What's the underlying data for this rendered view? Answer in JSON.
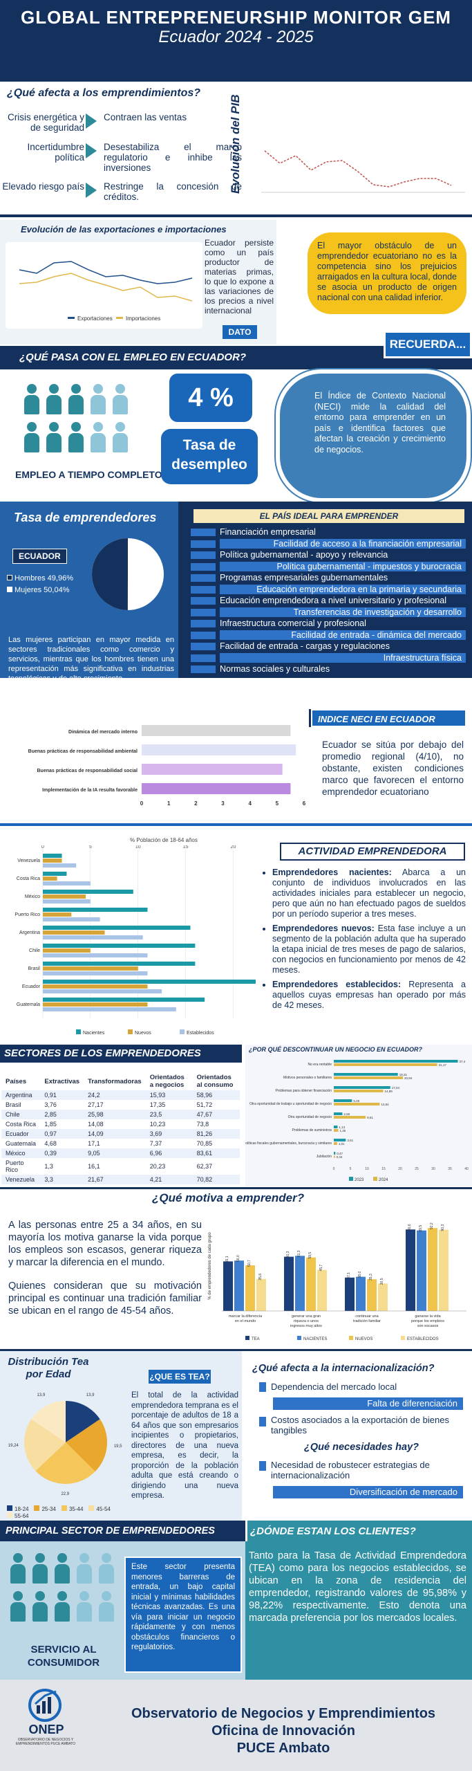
{
  "header": {
    "title": "GLOBAL ENTREPRENEURSHIP MONITOR GEM",
    "subtitle": "Ecuador 2024 - 2025"
  },
  "affects": {
    "title": "¿Qué afecta a los emprendimientos?",
    "rows": [
      {
        "left": "Crisis energética y de seguridad",
        "right": "Contraen las ventas"
      },
      {
        "left": "Incertidumbre política",
        "right": "Desestabiliza el marco regulatorio e inhibe las inversiones"
      },
      {
        "left": "Elevado riesgo país",
        "right": "Restringe la concesión de créditos."
      }
    ]
  },
  "pib": {
    "axis_label": "Evolución del PIB"
  },
  "exports": {
    "title": "Evolución de las exportaciones e importaciones",
    "text": "Ecuador persiste como un país productor de materias primas, lo que lo expone a las variaciones de los precios a nivel internacional",
    "button": "DATO",
    "legend": [
      "Exportaciones",
      "Importaciones"
    ]
  },
  "obstacle": {
    "text": "El mayor obstáculo de un emprendedor ecuatoriano no es la competencia sino los prejuicios arraigados en la cultura local, donde se asocia un producto de origen nacional con una calidad inferior.",
    "remember": "RECUERDA..."
  },
  "employment": {
    "title": "¿QUÉ PASA CON EL EMPLEO EN ECUADOR?",
    "caption": "EMPLEO A TIEMPO COMPLETO",
    "rate": "4 %",
    "rate_label": "Tasa de desempleo",
    "neci_text": "El Índice de Contexto Nacional (NECI) mide la calidad del entorno para emprender en un país e identifica factores que afectan la creación y crecimiento de negocios."
  },
  "rate_entre": {
    "title": "Tasa de emprendedores",
    "country": "ECUADOR",
    "men": "Hombres 49,96%",
    "women": "Mujeres 50,04%",
    "women_pct": 50.04,
    "text": "Las mujeres participan en mayor medida en sectores tradicionales como comercio y servicios, mientras que los hombres tienen una representación más significativa en industrias tecnológicas y de alto crecimiento."
  },
  "ideal": {
    "title": "EL PAÍS IDEAL PARA EMPRENDER",
    "items": [
      {
        "label": "Financiación empresarial",
        "side": "left"
      },
      {
        "label": "Facilidad de acceso a la financiación empresarial",
        "side": "right"
      },
      {
        "label": "Política gubernamental - apoyo y relevancia",
        "side": "left"
      },
      {
        "label": "Política gubernamental - impuestos y burocracia",
        "side": "right"
      },
      {
        "label": "Programas empresariales gubernamentales",
        "side": "left"
      },
      {
        "label": "Educación emprendedora en la primaria y secundaria",
        "side": "right"
      },
      {
        "label": "Educación emprendedora a nivel universitario y profesional",
        "side": "left"
      },
      {
        "label": "Transferencias de investigación y desarrollo",
        "side": "right"
      },
      {
        "label": "Infraestructura comercial y profesional",
        "side": "left"
      },
      {
        "label": "Facilidad de entrada - dinámica del mercado",
        "side": "right"
      },
      {
        "label": "Facilidad de entrada - cargas y regulaciones",
        "side": "left"
      },
      {
        "label": "Infraestructura física",
        "side": "right"
      },
      {
        "label": "Normas sociales y culturales",
        "side": "left"
      }
    ]
  },
  "neci": {
    "title": "INDICE NECI EN ECUADOR",
    "text": "Ecuador se sitúa por debajo del promedio regional (4/10), no obstante, existen condiciones marco que favorecen el entorno emprendedor ecuatoriano"
  },
  "neci_chart": {
    "type": "bar",
    "categories": [
      "Dinámica del mercado interno",
      "Buenas prácticas de responsabilidad ambiental",
      "Buenas prácticas de responsabilidad social",
      "Implementación de la IA resulta favorable"
    ],
    "values": [
      5.5,
      5.7,
      5.2,
      5.5
    ],
    "ticks": [
      "0",
      "1",
      "2",
      "3",
      "4",
      "5",
      "6"
    ],
    "colors": [
      "#d9d9d9",
      "#dfe3f6",
      "#d7b6ee",
      "#b98ae0"
    ]
  },
  "activity": {
    "title": "ACTIVIDAD EMPRENDEDORA",
    "chart_title": "% Población de 18-64 años",
    "ticks": [
      "0",
      "5",
      "10",
      "15",
      "20"
    ],
    "items": [
      {
        "head": "Emprendedores nacientes:",
        "body": "Abarca a un conjunto de individuos involucrados en las actividades iniciales para establecer un negocio, pero que aún no han efectuado pagos de sueldos por un período superior a tres meses."
      },
      {
        "head": "Emprendedores nuevos:",
        "body": "Esta fase incluye a un segmento de la población adulta que ha superado la etapa inicial de tres meses de pago de salarios, con negocios en funcionamiento por menos de 42 meses."
      },
      {
        "head": "Emprendedores establecidos:",
        "body": "Representa a aquellos cuyas empresas han operado por más de 42 meses."
      }
    ]
  },
  "activity_chart": {
    "type": "bar",
    "categories": [
      "Venezuela",
      "Costa Rica",
      "México",
      "Puerto Rico",
      "Argentina",
      "Chile",
      "Brasil",
      "Ecuador",
      "Guatemala"
    ],
    "series": [
      {
        "name": "Nacientes",
        "values": [
          2,
          2.5,
          9.5,
          11,
          15.5,
          16,
          16,
          23,
          17
        ]
      },
      {
        "name": "Nuevos",
        "values": [
          2,
          1.5,
          4.5,
          3,
          6.5,
          5,
          10,
          11,
          11
        ]
      },
      {
        "name": "Establecidos",
        "values": [
          3.5,
          5,
          5,
          6,
          10.5,
          11,
          11,
          12.5,
          14
        ]
      }
    ],
    "colors": [
      "#1a9aa6",
      "#d6a53a",
      "#a9c4e6"
    ]
  },
  "sectors": {
    "title": "SECTORES DE LOS EMPRENDEDORES",
    "columns": [
      "Países",
      "Extractivas",
      "Transformadoras",
      "Orientados a negocios",
      "Orientados al consumo"
    ],
    "rows": [
      [
        "Argentina",
        "0,91",
        "24,2",
        "15,93",
        "58,96"
      ],
      [
        "Brasil",
        "3,76",
        "27,17",
        "17,35",
        "51,72"
      ],
      [
        "Chile",
        "2,85",
        "25,98",
        "23,5",
        "47,67"
      ],
      [
        "Costa Rica",
        "1,85",
        "14,08",
        "10,23",
        "73,8"
      ],
      [
        "Ecuador",
        "0,97",
        "14,09",
        "3,69",
        "81,26"
      ],
      [
        "Guatemala",
        "4,68",
        "17,1",
        "7,37",
        "70,85"
      ],
      [
        "México",
        "0,39",
        "9,05",
        "6,96",
        "83,61"
      ],
      [
        "Puerto Rico",
        "1,3",
        "16,1",
        "20,23",
        "62,37"
      ],
      [
        "Venezuela",
        "3,3",
        "21,67",
        "4,21",
        "70,82"
      ]
    ]
  },
  "discontinue": {
    "title": "¿POR QUÉ DESCONTINUAR UN NEGOCIO EN ECUADOR?",
    "legend": [
      "2023",
      "2024"
    ],
    "ticks": [
      "0",
      "5",
      "10",
      "15",
      "20",
      "25",
      "30",
      "35",
      "40"
    ]
  },
  "discontinue_chart": {
    "type": "bar",
    "categories": [
      "No era rentable",
      "Motivos personales o familiares",
      "Problemas para obtener financiación",
      "Otra oportunidad de trabajo u oportunidad de negocio",
      "Otra oportunidad de negocio",
      "Problemas de suministros",
      "Políticas fiscales gubernamentales, burocracia y similares",
      "Jubilación"
    ],
    "series": [
      {
        "name": "2023",
        "values": [
          37.4,
          19.31,
          17.04,
          5.49,
          2.59,
          1.13,
          3.61,
          0.47
        ]
      },
      {
        "name": "2024",
        "values": [
          31.17,
          20.84,
          14.89,
          13.84,
          9.61,
          1.35,
          1.01,
          0.34
        ]
      }
    ],
    "colors": [
      "#1a9aa6",
      "#e0b84a"
    ]
  },
  "motivation": {
    "title": "¿Qué motiva a emprender?",
    "p1": "A las personas entre 25 a 34 años, en su mayoría los motiva ganarse la vida porque los empleos son escasos, generar riqueza y marcar la diferencia en el mundo.",
    "p2": "Quienes consideran que su motivación principal es continuar una tradición familiar se ubican en el rango de 45-54 años.",
    "ylabel": "% de emprendedores de cada grupo"
  },
  "motivation_chart": {
    "type": "bar",
    "categories": [
      "marcar la diferencia en el mundo",
      "generar una gran riqueza o unos ingresos muy altos",
      "continuar una tradición familiar",
      "ganarse la vida porque los empleos son escasos"
    ],
    "series": [
      {
        "name": "TEA",
        "values": [
          55.1,
          60.3,
          37.1,
          90.6
        ]
      },
      {
        "name": "NACIENTES",
        "values": [
          56.0,
          61.3,
          38.0,
          89.5
        ]
      },
      {
        "name": "NUEVOS",
        "values": [
          50.7,
          59.5,
          35.3,
          92.2
        ]
      },
      {
        "name": "ESTABLECIDOS",
        "values": [
          35.6,
          45.7,
          30.5,
          90.3
        ]
      }
    ],
    "colors": [
      "#1a3f7a",
      "#3f7fd0",
      "#f0c34a",
      "#f6dc8e"
    ]
  },
  "tea": {
    "title": "Distribución Tea por Edad",
    "label": "¿QUE ES TEA?",
    "text": "El total de la actividad emprendedora temprana es el porcentaje de adultos de 18 a 64 años que son empresarios incipientes o propietarios, directores de una nueva empresa, es decir, la proporción de la población adulta que está creando o dirigiendo una nueva empresa."
  },
  "tea_chart": {
    "type": "pie",
    "categories": [
      "18-24",
      "25-34",
      "35-44",
      "45-54",
      "55-64"
    ],
    "values": [
      13.9,
      19.5,
      22.9,
      19.24,
      13.9
    ],
    "colors": [
      "#1a3f7a",
      "#e9a72d",
      "#f5c65a",
      "#f8dea0",
      "#fbe9c4"
    ],
    "labels": [
      "13,9",
      "19,5",
      "22,9",
      "19,24",
      "13,9"
    ]
  },
  "intl": {
    "title": "¿Qué afecta a la internacionalización?",
    "rows": [
      "Dependencia del mercado local",
      "Falta de diferenciación",
      "Costos asociados a la exportación de bienes tangibles"
    ],
    "needs_title": "¿Qué necesidades hay?",
    "needs": [
      "Necesidad de robustecer estrategias de internacionalización",
      "Diversificación de mercado"
    ]
  },
  "principal": {
    "title": "PRINCIPAL SECTOR DE EMPRENDEDORES",
    "caption": "SERVICIO AL CONSUMIDOR",
    "text": "Este sector presenta menores barreras de entrada, un bajo capital inicial y mínimas habilidades técnicas avanzadas. Es una vía para iniciar un negocio rápidamente y con menos obstáculos financieros o regulatorios."
  },
  "clients": {
    "title": "¿DÓNDE ESTAN LOS CLIENTES?",
    "text": "Tanto para la Tasa de Actividad Emprendedora (TEA) como para los negocios establecidos, se ubican en la zona de residencia del emprendedor, registrando valores de 95,98% y 98,22% respectivamente. Esto denota una marcada preferencia por los mercados locales."
  },
  "footer": {
    "logo": "ONEP",
    "logo_sub": "OBSERVATORIO DE NEGOCIOS Y EMPRENDIMIENTOS PUCE AMBATO",
    "l1": "Observatorio de Negocios y Emprendimientos",
    "l2": "Oficina de Innovación",
    "l3": "PUCE Ambato"
  }
}
